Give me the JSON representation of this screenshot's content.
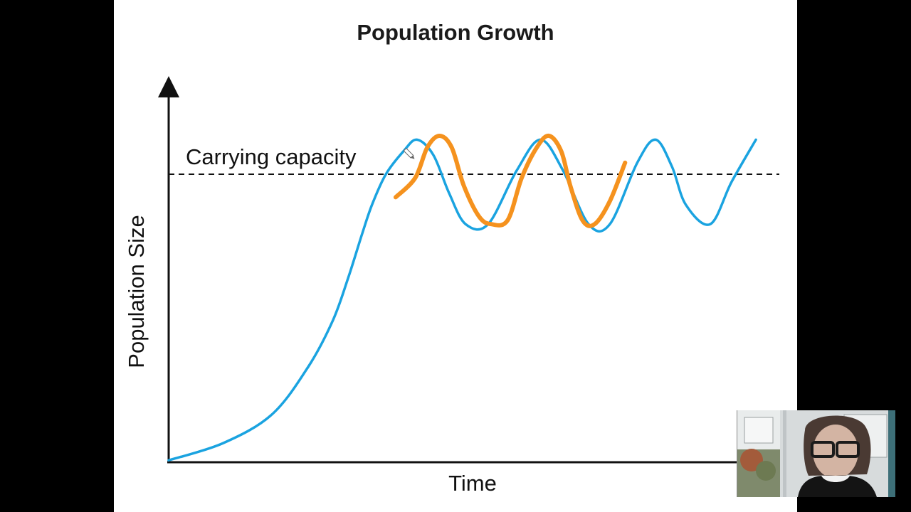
{
  "chart_data": {
    "type": "line",
    "title": "Population Growth",
    "xlabel": "Time",
    "ylabel": "Population Size",
    "xlim": [
      0,
      100
    ],
    "ylim": [
      0,
      100
    ],
    "grid": false,
    "axis_ticks": false,
    "annotations": [
      {
        "text": "Carrying capacity",
        "type": "horizontal-dashed-line",
        "y": 75
      }
    ],
    "series": [
      {
        "style": "blue solid",
        "color": "#1aa3e0",
        "x": [
          0,
          9,
          17,
          23,
          27,
          29.5,
          31.7,
          33.4,
          35.7,
          38.6,
          40.8,
          43.5,
          46.1,
          48.8,
          52.5,
          57.2,
          61.1,
          64.8,
          69,
          72.5,
          77,
          80,
          82.7,
          85,
          89,
          92.5,
          96.5
        ],
        "y": [
          0.5,
          5,
          12.5,
          25,
          37,
          48,
          59,
          67,
          75,
          81,
          84,
          80,
          70,
          62,
          62,
          76,
          84,
          76,
          62,
          62,
          78,
          84,
          77,
          67,
          62,
          73,
          84
        ]
      },
      {
        "style": "orange hand-drawn annotation",
        "color": "#f5921e",
        "x": [
          37.3,
          40.5,
          42.5,
          44.5,
          46.5,
          48.5,
          51,
          53,
          55.7,
          58,
          60.5,
          62.5,
          64.5,
          66,
          68,
          70,
          72.5,
          75
        ],
        "y": [
          69,
          74,
          82,
          85,
          82,
          72,
          64,
          62,
          63,
          74,
          82,
          85,
          81,
          72,
          63,
          62,
          68,
          78
        ]
      }
    ]
  },
  "page": {
    "background": "#000000",
    "slide_background": "#ffffff"
  },
  "webcam": {
    "icon": "webcam-presenter-thumbnail"
  }
}
